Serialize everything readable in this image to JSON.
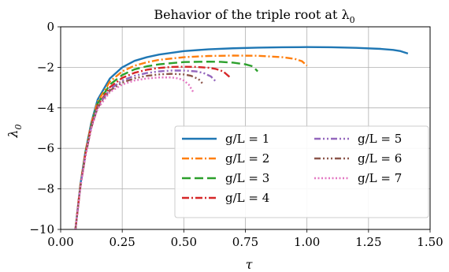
{
  "chart_data": {
    "type": "line",
    "title": "Behavior of the triple root at λ",
    "title_subscript": "0",
    "xlabel": "τ",
    "ylabel": "λ",
    "ylabel_subscript": "0",
    "xlim": [
      0,
      1.5
    ],
    "ylim": [
      -10,
      0
    ],
    "x_ticks": [
      0,
      0.25,
      0.5,
      0.75,
      1.0,
      1.25,
      1.5
    ],
    "x_tick_labels": [
      "0.00",
      "0.25",
      "0.50",
      "0.75",
      "1.00",
      "1.25",
      "1.50"
    ],
    "y_ticks": [
      0,
      -2,
      -4,
      -6,
      -8,
      -10
    ],
    "y_tick_labels": [
      "0",
      "−2",
      "−4",
      "−6",
      "−8",
      "−10"
    ],
    "grid": true,
    "legend_position": "lower-right",
    "legend_columns": 2,
    "series": [
      {
        "name": "g/L = 1",
        "color": "#1f77b4",
        "dash": "solid",
        "x": [
          0.06,
          0.08,
          0.1,
          0.125,
          0.15,
          0.2,
          0.25,
          0.3,
          0.35,
          0.4,
          0.5,
          0.6,
          0.7,
          0.8,
          0.9,
          1.0,
          1.1,
          1.2,
          1.3,
          1.35,
          1.38,
          1.41
        ],
        "y": [
          -10,
          -7.8,
          -6.2,
          -4.7,
          -3.6,
          -2.55,
          -2.0,
          -1.68,
          -1.5,
          -1.37,
          -1.2,
          -1.11,
          -1.06,
          -1.03,
          -1.01,
          -1.0,
          -1.01,
          -1.04,
          -1.09,
          -1.14,
          -1.2,
          -1.32
        ]
      },
      {
        "name": "g/L = 2",
        "color": "#ff7f0e",
        "dash": "dashdot",
        "x": [
          0.06,
          0.08,
          0.1,
          0.125,
          0.15,
          0.2,
          0.25,
          0.3,
          0.35,
          0.4,
          0.5,
          0.6,
          0.7,
          0.8,
          0.9,
          0.95,
          0.98,
          1.0
        ],
        "y": [
          -10,
          -7.8,
          -6.2,
          -4.75,
          -3.7,
          -2.7,
          -2.2,
          -1.92,
          -1.75,
          -1.63,
          -1.5,
          -1.44,
          -1.42,
          -1.43,
          -1.5,
          -1.58,
          -1.7,
          -1.92
        ]
      },
      {
        "name": "g/L = 3",
        "color": "#2ca02c",
        "dash": "longdash",
        "x": [
          0.06,
          0.08,
          0.1,
          0.125,
          0.15,
          0.2,
          0.25,
          0.3,
          0.35,
          0.4,
          0.5,
          0.6,
          0.65,
          0.7,
          0.75,
          0.78,
          0.8
        ],
        "y": [
          -10,
          -7.85,
          -6.25,
          -4.8,
          -3.8,
          -2.85,
          -2.38,
          -2.1,
          -1.95,
          -1.85,
          -1.74,
          -1.72,
          -1.73,
          -1.77,
          -1.85,
          -1.95,
          -2.2
        ]
      },
      {
        "name": "g/L = 4",
        "color": "#d62728",
        "dash": "dashdot",
        "x": [
          0.06,
          0.08,
          0.1,
          0.125,
          0.15,
          0.2,
          0.25,
          0.3,
          0.35,
          0.4,
          0.45,
          0.5,
          0.55,
          0.6,
          0.63,
          0.66,
          0.69
        ],
        "y": [
          -10,
          -7.9,
          -6.3,
          -4.85,
          -3.9,
          -2.98,
          -2.52,
          -2.27,
          -2.12,
          -2.03,
          -1.98,
          -1.97,
          -1.98,
          -2.02,
          -2.08,
          -2.2,
          -2.52
        ]
      },
      {
        "name": "g/L = 5",
        "color": "#9467bd",
        "dash": "dashdotdot",
        "x": [
          0.06,
          0.08,
          0.1,
          0.125,
          0.15,
          0.2,
          0.25,
          0.3,
          0.35,
          0.4,
          0.45,
          0.5,
          0.55,
          0.58,
          0.61,
          0.63
        ],
        "y": [
          -10,
          -7.9,
          -6.35,
          -4.9,
          -3.95,
          -3.08,
          -2.65,
          -2.42,
          -2.28,
          -2.2,
          -2.16,
          -2.16,
          -2.2,
          -2.28,
          -2.45,
          -2.7
        ]
      },
      {
        "name": "g/L = 6",
        "color": "#8c564b",
        "dash": "dashdotdotdot",
        "x": [
          0.06,
          0.08,
          0.1,
          0.125,
          0.15,
          0.2,
          0.25,
          0.3,
          0.35,
          0.4,
          0.45,
          0.5,
          0.53,
          0.56,
          0.58
        ],
        "y": [
          -10,
          -7.9,
          -6.4,
          -4.95,
          -4.0,
          -3.15,
          -2.75,
          -2.54,
          -2.42,
          -2.35,
          -2.32,
          -2.35,
          -2.42,
          -2.58,
          -2.85
        ]
      },
      {
        "name": "g/L = 7",
        "color": "#e377c2",
        "dash": "dotted",
        "x": [
          0.06,
          0.08,
          0.1,
          0.125,
          0.15,
          0.2,
          0.25,
          0.3,
          0.35,
          0.4,
          0.45,
          0.48,
          0.5,
          0.52,
          0.54
        ],
        "y": [
          -10,
          -7.95,
          -6.45,
          -5.0,
          -4.05,
          -3.22,
          -2.85,
          -2.65,
          -2.55,
          -2.5,
          -2.5,
          -2.55,
          -2.65,
          -2.85,
          -3.25
        ]
      }
    ]
  }
}
